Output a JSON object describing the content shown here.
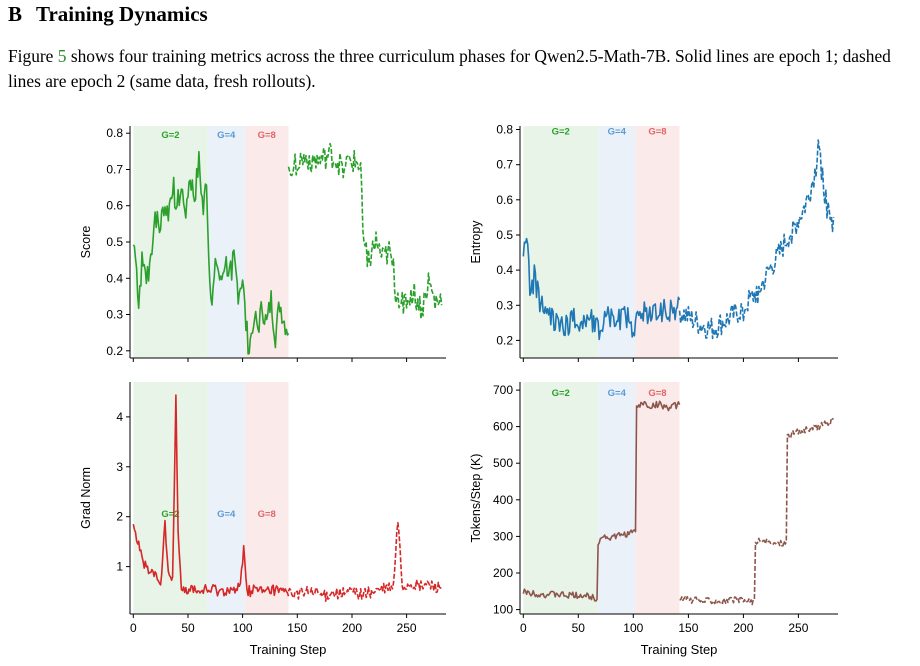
{
  "section": {
    "number": "B",
    "title": "Training Dynamics"
  },
  "caption": {
    "before": "Figure ",
    "ref": "5",
    "after": " shows four training metrics across the three curriculum phases for Qwen2.5-Math-7B. Solid lines are epoch 1; dashed lines are epoch 2 (same data, fresh rollouts)."
  },
  "phases": [
    {
      "label": "G=2",
      "start": 0,
      "end": 68,
      "color": "#2ca02c",
      "fill": "#e8f4e8"
    },
    {
      "label": "G=4",
      "start": 68,
      "end": 102,
      "color": "#5b9bd5",
      "fill": "#eaf1f9"
    },
    {
      "label": "G=8",
      "start": 102,
      "end": 142,
      "color": "#e06666",
      "fill": "#fbeaea"
    }
  ],
  "chart_data": [
    {
      "type": "line",
      "id": "score",
      "ylabel": "Score",
      "xlabel": "",
      "xlim": [
        -3,
        286
      ],
      "ylim": [
        0.18,
        0.82
      ],
      "xticks": [
        0,
        50,
        100,
        150,
        200,
        250
      ],
      "yticks": [
        0.2,
        0.3,
        0.4,
        0.5,
        0.6,
        0.7,
        0.8
      ],
      "ytick_labels": [
        "0.2",
        "0.3",
        "0.4",
        "0.5",
        "0.6",
        "0.7",
        "0.8"
      ],
      "show_xtick_labels": false,
      "phase_label_y": 0.795,
      "color": "#2ca02c",
      "series": [
        {
          "style": "solid",
          "x0": 0,
          "x1": 142,
          "points": [
            [
              0,
              0.5
            ],
            [
              2,
              0.42
            ],
            [
              5,
              0.34
            ],
            [
              8,
              0.44
            ],
            [
              12,
              0.39
            ],
            [
              16,
              0.46
            ],
            [
              20,
              0.58
            ],
            [
              24,
              0.53
            ],
            [
              28,
              0.6
            ],
            [
              32,
              0.58
            ],
            [
              36,
              0.66
            ],
            [
              40,
              0.6
            ],
            [
              44,
              0.64
            ],
            [
              48,
              0.6
            ],
            [
              52,
              0.68
            ],
            [
              56,
              0.62
            ],
            [
              60,
              0.72
            ],
            [
              64,
              0.58
            ],
            [
              67,
              0.68
            ],
            [
              69,
              0.46
            ],
            [
              72,
              0.33
            ],
            [
              76,
              0.45
            ],
            [
              80,
              0.38
            ],
            [
              84,
              0.45
            ],
            [
              88,
              0.41
            ],
            [
              92,
              0.45
            ],
            [
              96,
              0.36
            ],
            [
              100,
              0.4
            ],
            [
              103,
              0.27
            ],
            [
              106,
              0.2
            ],
            [
              110,
              0.3
            ],
            [
              114,
              0.26
            ],
            [
              118,
              0.32
            ],
            [
              122,
              0.27
            ],
            [
              126,
              0.34
            ],
            [
              130,
              0.24
            ],
            [
              134,
              0.33
            ],
            [
              138,
              0.28
            ],
            [
              141,
              0.26
            ]
          ],
          "amp": 0.035
        },
        {
          "style": "dashed",
          "x0": 142,
          "x1": 282,
          "points": [
            [
              142,
              0.7
            ],
            [
              150,
              0.72
            ],
            [
              160,
              0.73
            ],
            [
              170,
              0.72
            ],
            [
              180,
              0.74
            ],
            [
              190,
              0.71
            ],
            [
              200,
              0.72
            ],
            [
              208,
              0.71
            ],
            [
              211,
              0.49
            ],
            [
              216,
              0.45
            ],
            [
              222,
              0.5
            ],
            [
              228,
              0.45
            ],
            [
              234,
              0.47
            ],
            [
              238,
              0.42
            ],
            [
              240,
              0.36
            ],
            [
              248,
              0.33
            ],
            [
              256,
              0.36
            ],
            [
              264,
              0.31
            ],
            [
              270,
              0.39
            ],
            [
              276,
              0.33
            ],
            [
              282,
              0.34
            ]
          ],
          "amp": 0.035
        }
      ]
    },
    {
      "type": "line",
      "id": "entropy",
      "ylabel": "Entropy",
      "xlabel": "",
      "xlim": [
        -3,
        286
      ],
      "ylim": [
        0.15,
        0.81
      ],
      "xticks": [
        0,
        50,
        100,
        150,
        200,
        250
      ],
      "yticks": [
        0.2,
        0.3,
        0.4,
        0.5,
        0.6,
        0.7,
        0.8
      ],
      "ytick_labels": [
        "0.2",
        "0.3",
        "0.4",
        "0.5",
        "0.6",
        "0.7",
        "0.8"
      ],
      "show_xtick_labels": false,
      "phase_label_y": 0.795,
      "color": "#1f77b4",
      "series": [
        {
          "style": "solid",
          "x0": 0,
          "x1": 142,
          "points": [
            [
              0,
              0.45
            ],
            [
              3,
              0.52
            ],
            [
              6,
              0.33
            ],
            [
              10,
              0.38
            ],
            [
              16,
              0.3
            ],
            [
              22,
              0.27
            ],
            [
              30,
              0.26
            ],
            [
              38,
              0.24
            ],
            [
              46,
              0.26
            ],
            [
              54,
              0.25
            ],
            [
              60,
              0.27
            ],
            [
              68,
              0.23
            ],
            [
              76,
              0.28
            ],
            [
              84,
              0.26
            ],
            [
              92,
              0.27
            ],
            [
              100,
              0.24
            ],
            [
              108,
              0.28
            ],
            [
              116,
              0.27
            ],
            [
              124,
              0.29
            ],
            [
              132,
              0.28
            ],
            [
              141,
              0.3
            ]
          ],
          "amp": 0.035
        },
        {
          "style": "dashed",
          "x0": 142,
          "x1": 282,
          "points": [
            [
              142,
              0.28
            ],
            [
              152,
              0.26
            ],
            [
              162,
              0.24
            ],
            [
              172,
              0.23
            ],
            [
              182,
              0.25
            ],
            [
              192,
              0.27
            ],
            [
              200,
              0.29
            ],
            [
              208,
              0.32
            ],
            [
              216,
              0.35
            ],
            [
              224,
              0.4
            ],
            [
              232,
              0.44
            ],
            [
              240,
              0.49
            ],
            [
              248,
              0.53
            ],
            [
              256,
              0.58
            ],
            [
              262,
              0.64
            ],
            [
              266,
              0.69
            ],
            [
              268,
              0.78
            ],
            [
              272,
              0.66
            ],
            [
              276,
              0.58
            ],
            [
              280,
              0.52
            ],
            [
              282,
              0.56
            ]
          ],
          "amp": 0.035
        }
      ]
    },
    {
      "type": "line",
      "id": "grad_norm",
      "ylabel": "Grad Norm",
      "xlabel": "Training Step",
      "xlim": [
        -3,
        286
      ],
      "ylim": [
        0.05,
        4.7
      ],
      "xticks": [
        0,
        50,
        100,
        150,
        200,
        250
      ],
      "yticks": [
        1,
        2,
        3,
        4
      ],
      "ytick_labels": [
        "1",
        "2",
        "3",
        "4"
      ],
      "show_xtick_labels": true,
      "phase_label_y": 2.05,
      "color": "#d62728",
      "series": [
        {
          "style": "solid",
          "x0": 0,
          "x1": 142,
          "points": [
            [
              0,
              1.9
            ],
            [
              3,
              1.6
            ],
            [
              6,
              1.35
            ],
            [
              10,
              1.05
            ],
            [
              14,
              0.85
            ],
            [
              18,
              0.9
            ],
            [
              22,
              0.7
            ],
            [
              26,
              0.75
            ],
            [
              29,
              1.9
            ],
            [
              32,
              0.8
            ],
            [
              36,
              0.75
            ],
            [
              39,
              4.4
            ],
            [
              41,
              1.8
            ],
            [
              44,
              0.6
            ],
            [
              48,
              0.55
            ],
            [
              52,
              0.5
            ],
            [
              56,
              0.6
            ],
            [
              60,
              0.45
            ],
            [
              64,
              0.55
            ],
            [
              68,
              0.5
            ],
            [
              74,
              0.55
            ],
            [
              80,
              0.5
            ],
            [
              86,
              0.55
            ],
            [
              92,
              0.5
            ],
            [
              98,
              0.6
            ],
            [
              101,
              1.45
            ],
            [
              104,
              0.5
            ],
            [
              112,
              0.55
            ],
            [
              120,
              0.5
            ],
            [
              128,
              0.55
            ],
            [
              136,
              0.5
            ],
            [
              141,
              0.5
            ]
          ],
          "amp": 0.12
        },
        {
          "style": "dashed",
          "x0": 142,
          "x1": 282,
          "points": [
            [
              142,
              0.5
            ],
            [
              150,
              0.45
            ],
            [
              160,
              0.5
            ],
            [
              170,
              0.45
            ],
            [
              176,
              0.4
            ],
            [
              180,
              0.5
            ],
            [
              190,
              0.45
            ],
            [
              200,
              0.5
            ],
            [
              210,
              0.45
            ],
            [
              220,
              0.5
            ],
            [
              230,
              0.55
            ],
            [
              238,
              0.6
            ],
            [
              242,
              1.95
            ],
            [
              246,
              0.6
            ],
            [
              254,
              0.65
            ],
            [
              262,
              0.6
            ],
            [
              270,
              0.65
            ],
            [
              276,
              0.6
            ],
            [
              282,
              0.6
            ]
          ],
          "amp": 0.12
        }
      ]
    },
    {
      "type": "line",
      "id": "tokens_per_step",
      "ylabel": "Tokens/Step (K)",
      "xlabel": "Training Step",
      "xlim": [
        -3,
        286
      ],
      "ylim": [
        88,
        722
      ],
      "xticks": [
        0,
        50,
        100,
        150,
        200,
        250
      ],
      "yticks": [
        100,
        200,
        300,
        400,
        500,
        600,
        700
      ],
      "ytick_labels": [
        "100",
        "200",
        "300",
        "400",
        "500",
        "600",
        "700"
      ],
      "show_xtick_labels": true,
      "phase_label_y": 692,
      "color": "#8c564b",
      "series": [
        {
          "style": "solid",
          "x0": 0,
          "x1": 142,
          "points": [
            [
              0,
              148
            ],
            [
              10,
              145
            ],
            [
              20,
              140
            ],
            [
              30,
              142
            ],
            [
              40,
              138
            ],
            [
              50,
              140
            ],
            [
              60,
              136
            ],
            [
              67,
              130
            ],
            [
              68,
              285
            ],
            [
              72,
              300
            ],
            [
              80,
              296
            ],
            [
              90,
              305
            ],
            [
              100,
              310
            ],
            [
              102,
              318
            ],
            [
              103,
              650
            ],
            [
              108,
              665
            ],
            [
              116,
              655
            ],
            [
              124,
              662
            ],
            [
              132,
              650
            ],
            [
              141,
              660
            ]
          ],
          "amp": 9
        },
        {
          "style": "dashed",
          "x0": 142,
          "x1": 282,
          "points": [
            [
              142,
              128
            ],
            [
              152,
              126
            ],
            [
              162,
              124
            ],
            [
              172,
              126
            ],
            [
              182,
              124
            ],
            [
              192,
              126
            ],
            [
              202,
              124
            ],
            [
              210,
              122
            ],
            [
              211,
              288
            ],
            [
              218,
              285
            ],
            [
              226,
              280
            ],
            [
              234,
              282
            ],
            [
              239,
              284
            ],
            [
              240,
              575
            ],
            [
              248,
              585
            ],
            [
              256,
              590
            ],
            [
              264,
              595
            ],
            [
              272,
              605
            ],
            [
              278,
              612
            ],
            [
              282,
              620
            ]
          ],
          "amp": 9
        }
      ]
    }
  ]
}
